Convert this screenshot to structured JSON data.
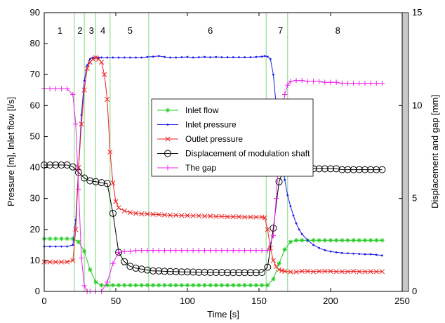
{
  "chart_data": {
    "type": "line",
    "xlabel": "Time [s]",
    "ylabel_left": "Pressure [m], Inlet flow [l/s]",
    "ylabel_right": "Displacement and gap [mm]",
    "xlim": [
      0,
      250
    ],
    "ylim_left": [
      0,
      90
    ],
    "ylim_right": [
      0,
      15
    ],
    "x_ticks": [
      0,
      50,
      100,
      150,
      200,
      250
    ],
    "y_ticks_left": [
      0,
      10,
      20,
      30,
      40,
      50,
      60,
      70,
      80,
      90
    ],
    "y_ticks_right": [
      0,
      5,
      10,
      15
    ],
    "grid": false,
    "legend_position": "center",
    "phase_boundaries": [
      21,
      28,
      36,
      46,
      73,
      155,
      170
    ],
    "phase_labels": [
      {
        "label": "1",
        "x": 11
      },
      {
        "label": "2",
        "x": 25
      },
      {
        "label": "3",
        "x": 33
      },
      {
        "label": "4",
        "x": 41
      },
      {
        "label": "5",
        "x": 60
      },
      {
        "label": "6",
        "x": 116
      },
      {
        "label": "7",
        "x": 165
      },
      {
        "label": "8",
        "x": 205
      }
    ],
    "phase_line_color": "#7fd87f",
    "series": [
      {
        "name": "Inlet flow",
        "axis": "left",
        "color": "#22cc22",
        "marker": "asterisk",
        "x": [
          0,
          4,
          8,
          12,
          16,
          20,
          24,
          28,
          32,
          36,
          40,
          44,
          48,
          52,
          56,
          60,
          64,
          68,
          72,
          76,
          80,
          84,
          88,
          92,
          96,
          100,
          104,
          108,
          112,
          116,
          120,
          124,
          128,
          132,
          136,
          140,
          144,
          148,
          152,
          156,
          160,
          164,
          168,
          172,
          176,
          180,
          184,
          188,
          192,
          196,
          200,
          204,
          208,
          212,
          216,
          220,
          224,
          228,
          232,
          236
        ],
        "y": [
          17,
          17,
          17,
          17,
          17,
          17,
          16,
          13,
          7,
          3,
          2,
          2,
          2,
          2,
          2,
          2,
          2,
          2,
          2,
          2,
          2,
          2,
          2,
          2,
          2,
          2,
          2,
          2,
          2,
          2,
          2,
          2,
          2,
          2,
          2,
          2,
          2,
          2,
          2,
          2,
          4,
          9,
          13.5,
          16,
          16.5,
          16.5,
          16.5,
          16.5,
          16.5,
          16.5,
          16.5,
          16.5,
          16.5,
          16.5,
          16.5,
          16.5,
          16.5,
          16.5,
          16.5,
          16.5
        ]
      },
      {
        "name": "Inlet pressure",
        "axis": "left",
        "color": "#1a1aee",
        "marker": "dot",
        "x": [
          0,
          4,
          8,
          12,
          16,
          20,
          22,
          24,
          26,
          28,
          30,
          32,
          34,
          36,
          38,
          40,
          44,
          48,
          52,
          56,
          60,
          64,
          68,
          72,
          76,
          80,
          84,
          88,
          92,
          96,
          100,
          104,
          108,
          112,
          116,
          120,
          124,
          128,
          132,
          136,
          140,
          144,
          148,
          152,
          154,
          156,
          158,
          160,
          162,
          164,
          166,
          168,
          170,
          172,
          174,
          176,
          178,
          180,
          184,
          188,
          192,
          196,
          200,
          204,
          208,
          212,
          216,
          220,
          224,
          228,
          232,
          236
        ],
        "y": [
          14.5,
          14.5,
          14.5,
          14.5,
          14.5,
          15,
          23,
          40,
          57,
          68,
          73,
          75,
          75.5,
          75.5,
          75.5,
          75.5,
          75.5,
          75.5,
          75.5,
          75.5,
          75.5,
          75.5,
          75.5,
          75.7,
          75.8,
          76,
          75.7,
          75.5,
          75.5,
          75.6,
          75.7,
          75.5,
          75.6,
          75.7,
          75.6,
          75.7,
          75.6,
          75.6,
          75.6,
          75.6,
          75.6,
          75.6,
          75.7,
          75.8,
          76,
          75.8,
          75,
          70,
          60,
          50,
          42,
          36,
          31,
          27.5,
          24.5,
          22,
          20,
          18.5,
          16.5,
          15,
          14,
          13.3,
          12.9,
          12.6,
          12.4,
          12.3,
          12.2,
          12.1,
          12,
          12,
          11.8,
          11.6
        ]
      },
      {
        "name": "Outlet pressure",
        "axis": "left",
        "color": "#ee2222",
        "marker": "x",
        "x": [
          0,
          4,
          8,
          12,
          16,
          20,
          22,
          24,
          26,
          28,
          30,
          32,
          34,
          36,
          38,
          40,
          42,
          44,
          46,
          48,
          50,
          52,
          56,
          60,
          64,
          68,
          72,
          76,
          80,
          84,
          88,
          92,
          96,
          100,
          104,
          108,
          112,
          116,
          120,
          124,
          128,
          132,
          136,
          140,
          144,
          148,
          152,
          154,
          156,
          158,
          160,
          162,
          164,
          166,
          168,
          172,
          176,
          180,
          184,
          188,
          192,
          196,
          200,
          204,
          208,
          212,
          216,
          220,
          224,
          228,
          232,
          236
        ],
        "y": [
          9.5,
          9.5,
          9.5,
          9.5,
          9.5,
          10,
          20,
          40,
          54,
          65,
          72,
          74,
          75,
          75.5,
          75,
          74,
          70,
          62,
          45,
          35,
          29,
          27,
          26,
          25.5,
          25.2,
          25,
          25,
          24.9,
          24.8,
          24.7,
          24.6,
          24.6,
          24.5,
          24.5,
          24.4,
          24.4,
          24.3,
          24.3,
          24.2,
          24.2,
          24.1,
          24.1,
          24.1,
          24,
          24,
          24,
          24,
          23.8,
          20,
          14,
          10,
          8,
          7,
          6.7,
          6.5,
          6.3,
          6.3,
          6.5,
          6.5,
          6.4,
          6.5,
          6.5,
          6.5,
          6.4,
          6.4,
          6.4,
          6.5,
          6.4,
          6.4,
          6.4,
          6.4,
          6.4
        ]
      },
      {
        "name": "Displacement of modulation shaft",
        "axis": "right",
        "color": "#000000",
        "marker": "circle",
        "x": [
          0,
          4,
          8,
          12,
          16,
          20,
          24,
          28,
          32,
          36,
          40,
          44,
          48,
          52,
          56,
          60,
          64,
          68,
          72,
          76,
          80,
          84,
          88,
          92,
          96,
          100,
          104,
          108,
          112,
          116,
          120,
          124,
          128,
          132,
          136,
          140,
          144,
          148,
          152,
          156,
          160,
          164,
          168,
          172,
          176,
          180,
          184,
          188,
          192,
          196,
          200,
          204,
          208,
          212,
          216,
          220,
          224,
          228,
          232,
          236
        ],
        "y": [
          6.8,
          6.8,
          6.8,
          6.8,
          6.8,
          6.7,
          6.4,
          6.1,
          5.95,
          5.9,
          5.85,
          5.8,
          4.2,
          2.1,
          1.6,
          1.35,
          1.25,
          1.2,
          1.15,
          1.1,
          1.1,
          1.08,
          1.07,
          1.06,
          1.05,
          1.05,
          1.04,
          1.03,
          1.03,
          1.02,
          1.02,
          1.02,
          1.01,
          1.01,
          1.01,
          1.01,
          1.01,
          1.01,
          1.02,
          1.3,
          3.4,
          5.9,
          6.7,
          6.7,
          6.65,
          6.65,
          6.65,
          6.6,
          6.6,
          6.6,
          6.6,
          6.6,
          6.55,
          6.55,
          6.55,
          6.55,
          6.55,
          6.55,
          6.55,
          6.55
        ]
      },
      {
        "name": "The gap",
        "axis": "right",
        "color": "#ee22ee",
        "marker": "plus",
        "x": [
          0,
          4,
          8,
          12,
          16,
          20,
          22,
          24,
          26,
          28,
          30,
          32,
          36,
          40,
          44,
          48,
          52,
          56,
          60,
          64,
          68,
          72,
          76,
          80,
          84,
          88,
          92,
          96,
          100,
          104,
          108,
          112,
          116,
          120,
          124,
          128,
          132,
          136,
          140,
          144,
          148,
          152,
          156,
          160,
          162,
          164,
          166,
          168,
          170,
          172,
          176,
          180,
          184,
          188,
          192,
          196,
          200,
          204,
          208,
          212,
          216,
          220,
          224,
          228,
          232,
          236
        ],
        "y": [
          10.9,
          10.9,
          10.9,
          10.9,
          10.9,
          10.6,
          9,
          5.5,
          1.8,
          0.3,
          0,
          0,
          0,
          0,
          0.5,
          1.5,
          2.1,
          2.15,
          2.15,
          2.2,
          2.2,
          2.2,
          2.2,
          2.2,
          2.2,
          2.2,
          2.2,
          2.2,
          2.2,
          2.2,
          2.2,
          2.2,
          2.2,
          2.2,
          2.2,
          2.2,
          2.2,
          2.2,
          2.2,
          2.2,
          2.2,
          2.2,
          2.2,
          3,
          5,
          7.5,
          9.5,
          10.6,
          11.1,
          11.3,
          11.35,
          11.35,
          11.3,
          11.3,
          11.3,
          11.25,
          11.25,
          11.25,
          11.2,
          11.2,
          11.2,
          11.2,
          11.2,
          11.2,
          11.2,
          11.2
        ]
      }
    ]
  }
}
